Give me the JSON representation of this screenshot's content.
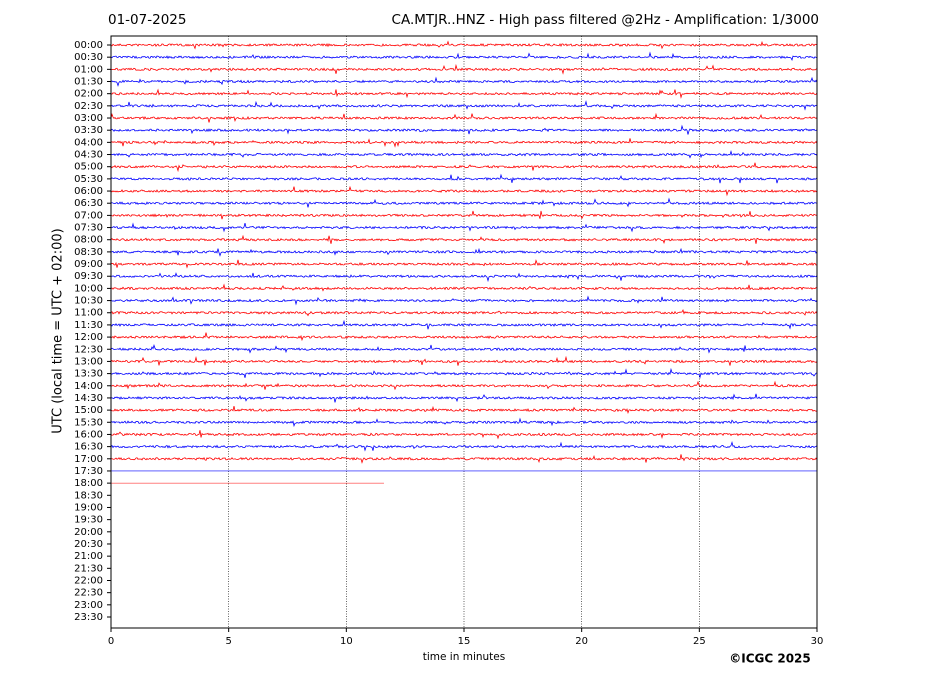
{
  "chart_data": {
    "type": "helicorder",
    "date": "01-07-2025",
    "title": "CA.MTJR..HNZ - High pass filtered @2Hz - Amplification: 1/3000",
    "y_label": "UTC (local time = UTC + 02:00)",
    "x_label": "time in minutes",
    "credit": "©ICGC 2025",
    "categories": [
      "00:00",
      "00:30",
      "01:00",
      "01:30",
      "02:00",
      "02:30",
      "03:00",
      "03:30",
      "04:00",
      "04:30",
      "05:00",
      "05:30",
      "06:00",
      "06:30",
      "07:00",
      "07:30",
      "08:00",
      "08:30",
      "09:00",
      "09:30",
      "10:00",
      "10:30",
      "11:00",
      "11:30",
      "12:00",
      "12:30",
      "13:00",
      "13:30",
      "14:00",
      "14:30",
      "15:00",
      "15:30",
      "16:00",
      "16:30",
      "17:00",
      "17:30",
      "18:00",
      "18:30",
      "19:00",
      "19:30",
      "20:00",
      "20:30",
      "21:00",
      "21:30",
      "22:00",
      "22:30",
      "23:00",
      "23:30"
    ],
    "values": [
      30,
      30,
      30,
      30,
      30,
      30,
      30,
      30,
      30,
      30,
      30,
      30,
      30,
      30,
      30,
      30,
      30,
      30,
      30,
      30,
      30,
      30,
      30,
      30,
      30,
      30,
      30,
      30,
      30,
      30,
      30,
      30,
      30,
      30,
      30,
      30,
      11.6,
      null,
      null,
      null,
      null,
      null,
      null,
      null,
      null,
      null,
      null,
      null
    ],
    "colors": [
      "#ff0000",
      "#0000ff"
    ],
    "xlim": [
      0,
      30
    ],
    "xticks": [
      0,
      5,
      10,
      15,
      20,
      25,
      30
    ],
    "grid": true
  }
}
